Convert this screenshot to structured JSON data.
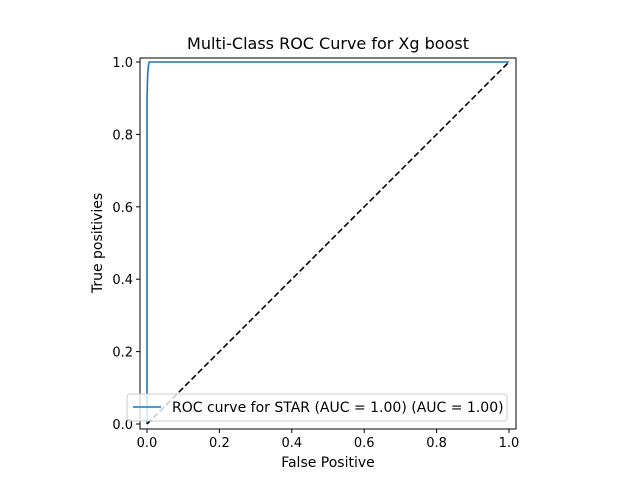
{
  "chart_data": {
    "type": "line",
    "title": "Multi-Class ROC Curve for Xg boost",
    "xlabel": "False Positive",
    "ylabel": "True positivies",
    "xlim": [
      0.0,
      1.0
    ],
    "ylim": [
      0.0,
      1.0
    ],
    "xticks": [
      0.0,
      0.2,
      0.4,
      0.6,
      0.8,
      1.0
    ],
    "xtick_labels": [
      "0.0",
      "0.2",
      "0.4",
      "0.6",
      "0.8",
      "1.0"
    ],
    "yticks": [
      0.0,
      0.2,
      0.4,
      0.6,
      0.8,
      1.0
    ],
    "ytick_labels": [
      "0.0",
      "0.2",
      "0.4",
      "0.6",
      "0.8",
      "1.0"
    ],
    "grid": false,
    "legend_position": "lower-right",
    "series": [
      {
        "name": "ROC curve for STAR (AUC = 1.00) (AUC = 1.00)",
        "color": "#1f77b4",
        "style": "solid",
        "x": [
          0.0,
          0.0,
          0.002,
          0.004,
          0.006,
          1.0
        ],
        "y": [
          0.0,
          0.9,
          0.97,
          0.99,
          1.0,
          1.0
        ]
      },
      {
        "color": "#000000",
        "style": "dashed",
        "x": [
          0.0,
          1.0
        ],
        "y": [
          0.0,
          1.0
        ]
      }
    ]
  }
}
